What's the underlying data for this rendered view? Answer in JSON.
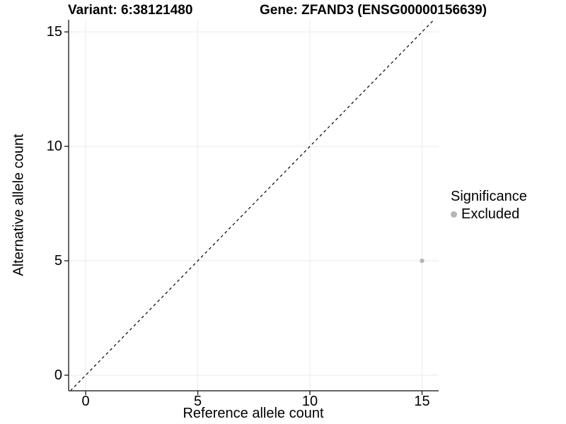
{
  "titles": {
    "variant": "Variant: 6:38121480",
    "gene": "Gene: ZFAND3 (ENSG00000156639)"
  },
  "axes": {
    "x_label": "Reference allele count",
    "y_label": "Alternative allele count"
  },
  "legend": {
    "title": "Significance",
    "items": [
      {
        "label": "Excluded",
        "color": "#b5b5b5"
      }
    ]
  },
  "chart_data": {
    "type": "scatter",
    "title_left": "Variant: 6:38121480",
    "title_right": "Gene: ZFAND3 (ENSG00000156639)",
    "xlabel": "Reference allele count",
    "ylabel": "Alternative allele count",
    "x_ticks": [
      0,
      5,
      10,
      15
    ],
    "y_ticks": [
      0,
      5,
      10,
      15
    ],
    "xlim": [
      -0.76,
      15.74
    ],
    "ylim": [
      -0.68,
      15.53
    ],
    "grid": "major",
    "gridline_color": "#ebebeb",
    "axis_color": "#333333",
    "series": [
      {
        "name": "Excluded",
        "color": "#b5b5b5",
        "points": [
          {
            "x": 15,
            "y": 5
          }
        ]
      }
    ],
    "reference_line": {
      "kind": "identity",
      "slope": 1,
      "intercept": 0,
      "style": "dashed",
      "color": "#000000"
    },
    "legend_position": "right"
  }
}
